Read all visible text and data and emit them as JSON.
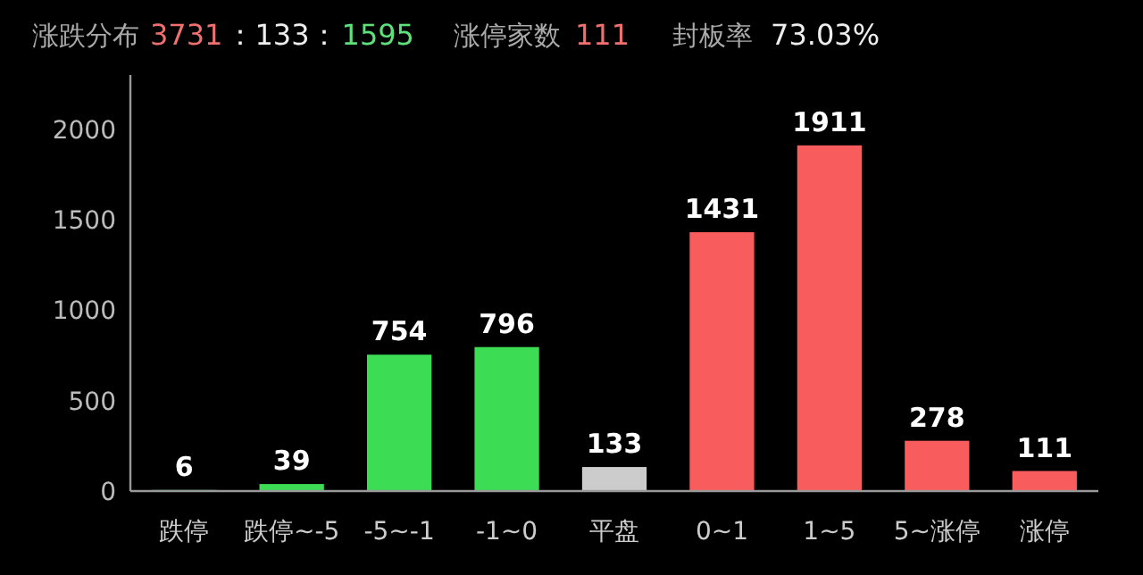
{
  "chart_data": {
    "type": "bar",
    "annotations": [
      "涨跌分布",
      "3731",
      "：133：",
      "1595",
      "涨停家数",
      "111",
      "封板率",
      "73.03%"
    ],
    "categories": [
      "跌停",
      "跌停~-5",
      "-5~-1",
      "-1~0",
      "平盘",
      "0~1",
      "1~5",
      "5~涨停",
      "涨停"
    ],
    "values": [
      6,
      39,
      754,
      796,
      133,
      1431,
      1911,
      278,
      111
    ],
    "colors": [
      "#3ddc55",
      "#3ddc55",
      "#3ddc55",
      "#3ddc55",
      "#cccccc",
      "#f85c5c",
      "#f85c5c",
      "#f85c5c",
      "#f85c5c"
    ],
    "ylim": [
      0,
      2300
    ],
    "yticks": [
      0,
      500,
      1000,
      1500,
      2000
    ],
    "data_labels": true,
    "grid": false
  }
}
